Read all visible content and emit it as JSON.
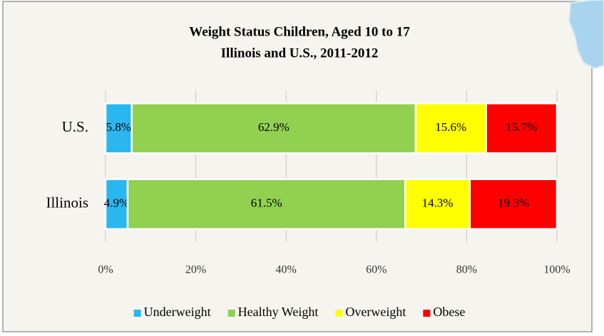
{
  "chart_data": {
    "type": "stacked-barh",
    "title": "Weight Status Children, Aged 10 to 17",
    "subtitle": "Illinois and U.S., 2011-2012",
    "categories": [
      "U.S.",
      "Illinois"
    ],
    "series": [
      {
        "name": "Underweight",
        "color": "#2ab7f0",
        "values": [
          5.8,
          4.9
        ],
        "value_labels": [
          "5.8%",
          "4.9%"
        ]
      },
      {
        "name": "Healthy Weight",
        "color": "#92d050",
        "values": [
          62.9,
          61.5
        ],
        "value_labels": [
          "62.9%",
          "61.5%"
        ]
      },
      {
        "name": "Overweight",
        "color": "#ffff00",
        "values": [
          15.6,
          14.3
        ],
        "value_labels": [
          "15.6%",
          "14.3%"
        ]
      },
      {
        "name": "Obese",
        "color": "#ff0000",
        "values": [
          15.7,
          19.3
        ],
        "value_labels": [
          "15.7%",
          "19.3%"
        ]
      }
    ],
    "xlim": [
      0,
      100
    ],
    "xticks": [
      {
        "value": 0,
        "label": "0%"
      },
      {
        "value": 20,
        "label": "20%"
      },
      {
        "value": 40,
        "label": "40%"
      },
      {
        "value": 60,
        "label": "60%"
      },
      {
        "value": 80,
        "label": "80%"
      },
      {
        "value": 100,
        "label": "100%"
      }
    ],
    "grid": true,
    "legend": "bottom"
  }
}
